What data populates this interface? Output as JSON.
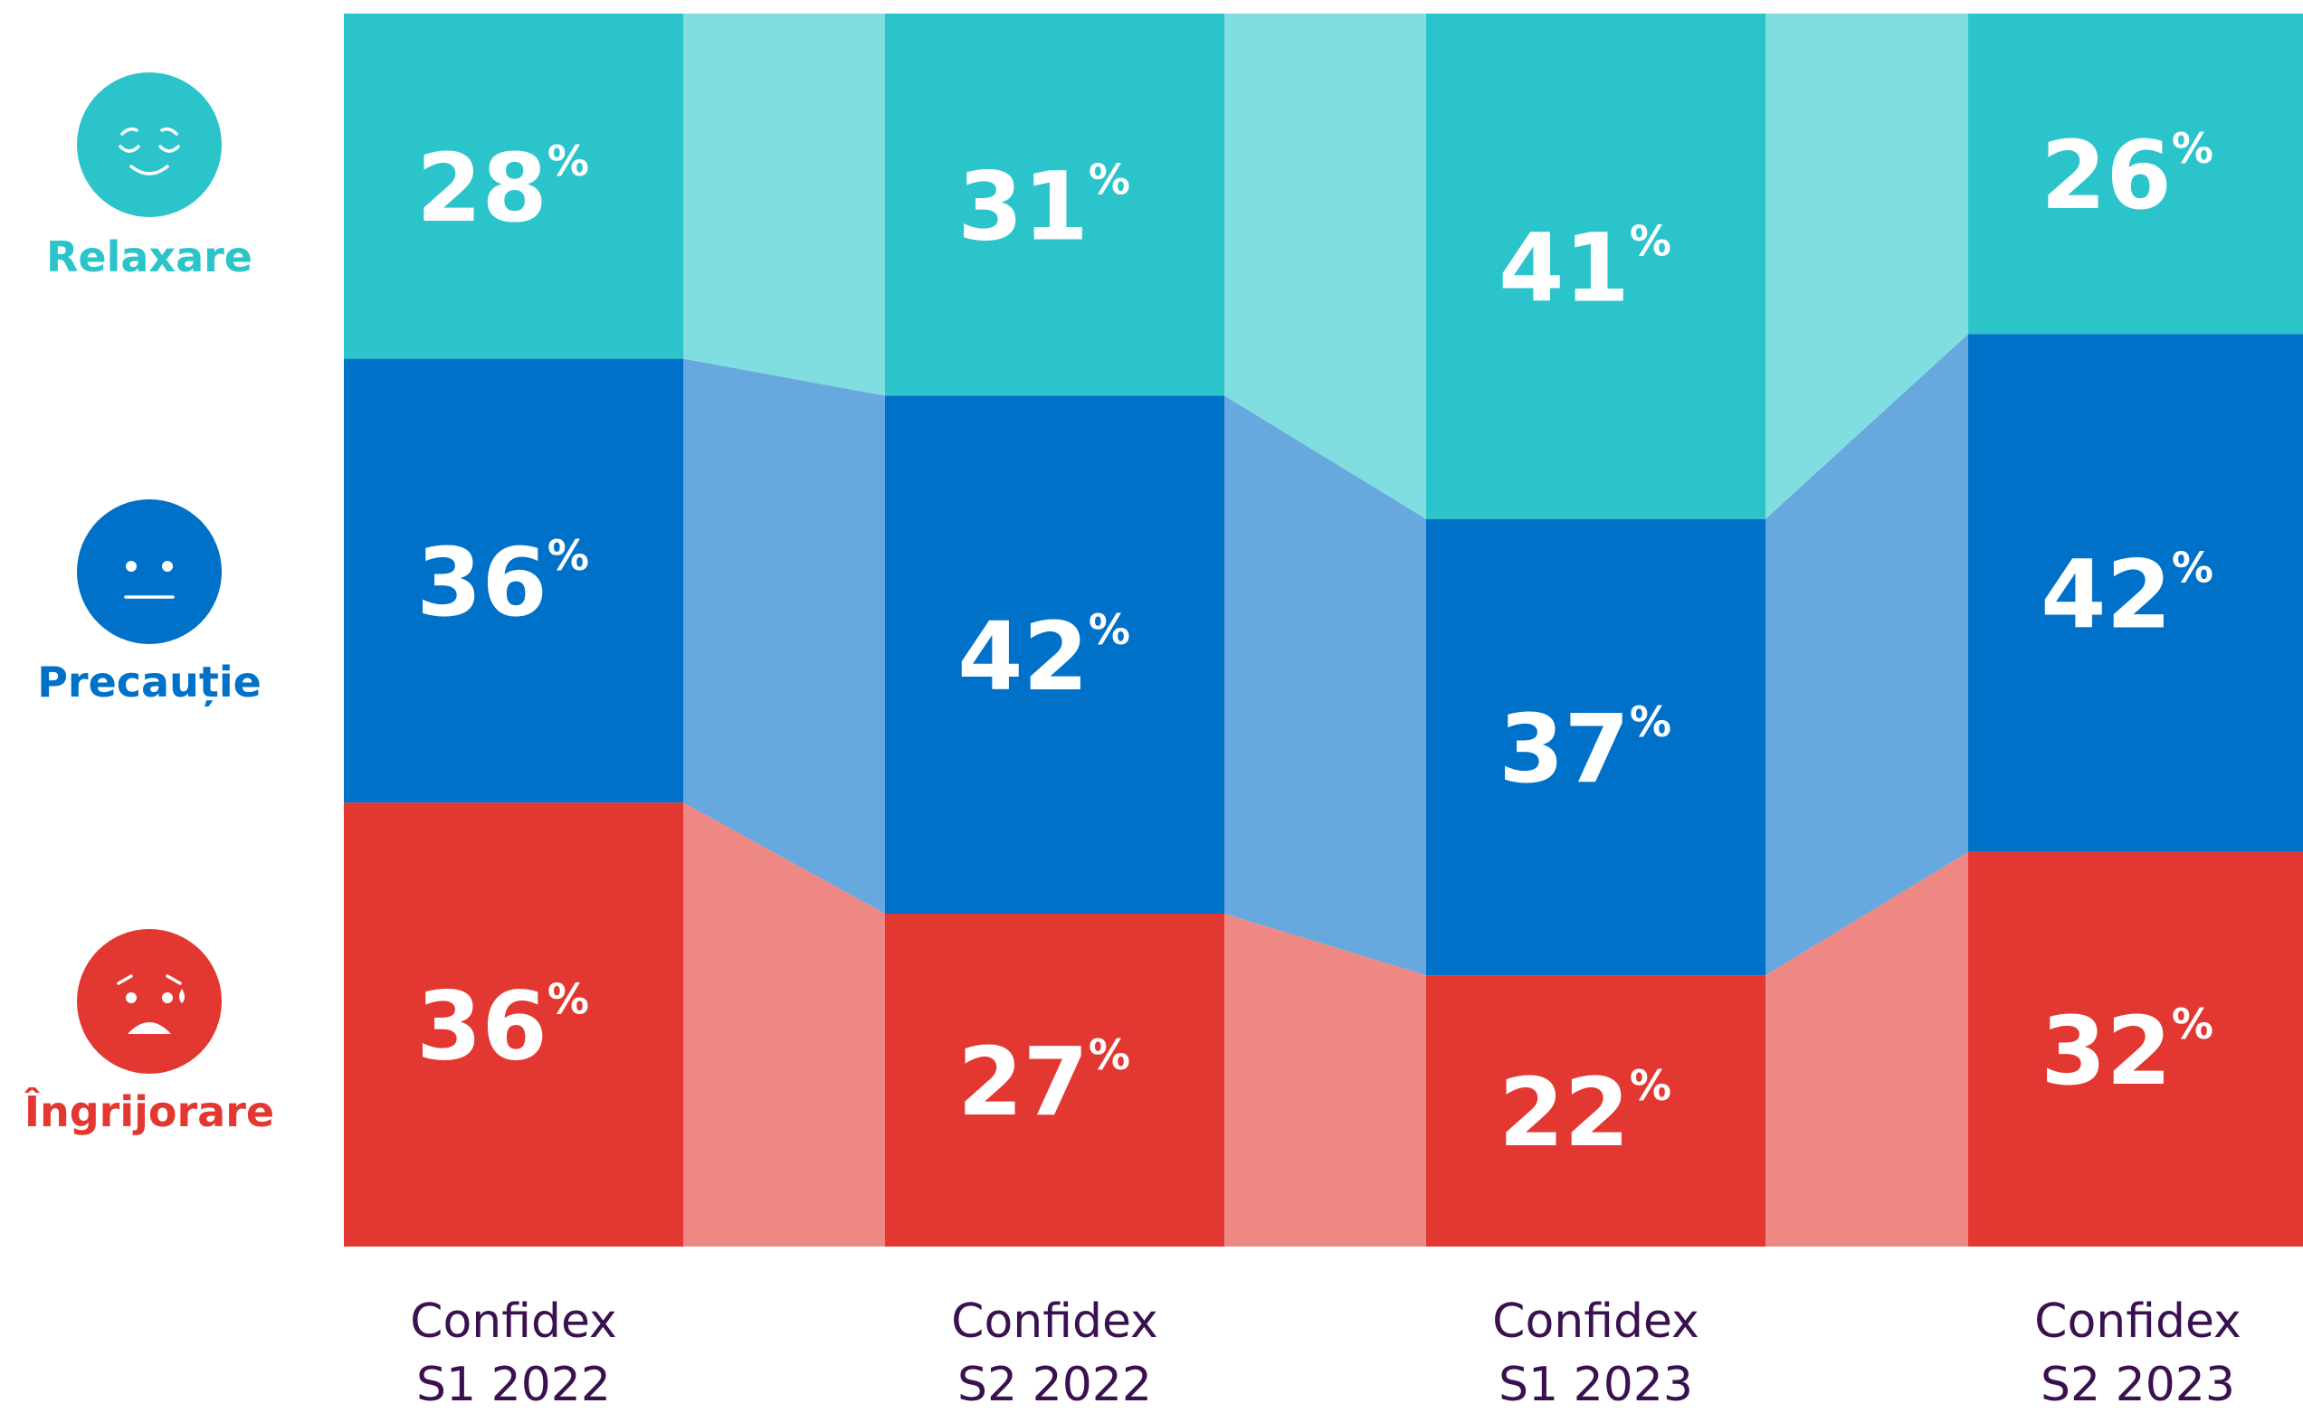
{
  "chart_data": {
    "type": "bar",
    "stacked": true,
    "normalized_percent": true,
    "categories": [
      [
        "Confidex",
        "S1 2022"
      ],
      [
        "Confidex",
        "S2 2022"
      ],
      [
        "Confidex",
        "S1 2023"
      ],
      [
        "Confidex",
        "S2 2023"
      ]
    ],
    "series": [
      {
        "name": "Relaxare",
        "key": "relaxare",
        "icon": "relaxed-face-icon",
        "color": "#2cc4cb",
        "connector_color": "#80dde0",
        "values": [
          28,
          31,
          41,
          26
        ]
      },
      {
        "name": "Precauție",
        "key": "precautie",
        "icon": "neutral-face-icon",
        "color": "#0071c8",
        "connector_color": "#67a8de",
        "values": [
          36,
          42,
          37,
          42
        ]
      },
      {
        "name": "Îngrijorare",
        "key": "ingrijorare",
        "icon": "worried-face-icon",
        "color": "#e33831",
        "connector_color": "#ee8884",
        "values": [
          36,
          27,
          22,
          32
        ]
      }
    ],
    "value_suffix": "%",
    "ylim": [
      0,
      100
    ],
    "grid": false,
    "legend_position": "left"
  },
  "label_color": "#3a1150"
}
